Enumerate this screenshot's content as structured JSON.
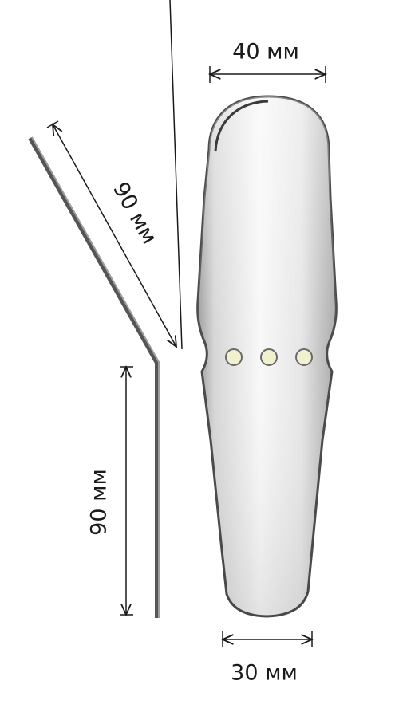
{
  "dimensions": {
    "top_width": "40 мм",
    "bottom_width": "30 мм",
    "side_length_angled": "90 мм",
    "side_length_vertical": "90 мм"
  },
  "colors": {
    "outline": "#4a4a4a",
    "metal_light": "#f7f7f7",
    "metal_mid": "#c9c9c9",
    "metal_dark": "#8f8f8f",
    "hole_fill": "#f1f1cf",
    "dimension_line": "#1a1a1a"
  }
}
